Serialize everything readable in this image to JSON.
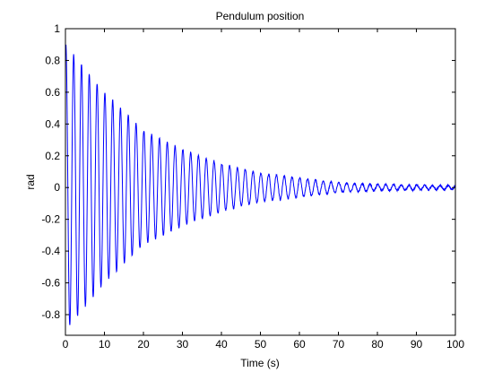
{
  "chart_data": {
    "type": "line",
    "title": "Pendulum position",
    "xlabel": "Time (s)",
    "ylabel": "rad",
    "xlim": [
      0,
      100
    ],
    "ylim": [
      -0.93,
      1.0
    ],
    "xticks": [
      0,
      10,
      20,
      30,
      40,
      50,
      60,
      70,
      80,
      90,
      100
    ],
    "xtick_labels": [
      "0",
      "10",
      "20",
      "30",
      "40",
      "50",
      "60",
      "70",
      "80",
      "90",
      "100"
    ],
    "yticks": [
      -0.8,
      -0.6,
      -0.4,
      -0.2,
      0,
      0.2,
      0.4,
      0.6,
      0.8,
      1
    ],
    "ytick_labels": [
      "-0.8",
      "-0.6",
      "-0.4",
      "-0.2",
      "0",
      "0.2",
      "0.4",
      "0.6",
      "0.8",
      "1"
    ],
    "grid": false,
    "legend": "none",
    "series": [
      {
        "color": "#0000ff",
        "description_values": {
          "initial_peak": 0.88,
          "initial_trough": -0.9,
          "period": 2.0,
          "amplitude_envelope": [
            [
              0,
              0.9
            ],
            [
              10,
              0.6
            ],
            [
              20,
              0.36
            ],
            [
              30,
              0.24
            ],
            [
              40,
              0.15
            ],
            [
              50,
              0.09
            ],
            [
              60,
              0.06
            ],
            [
              70,
              0.03
            ],
            [
              80,
              0.02
            ],
            [
              90,
              0.015
            ],
            [
              100,
              0.012
            ]
          ],
          "noise_level": 0.006
        }
      }
    ],
    "colors": {
      "line": "#0000ff",
      "axes": "#000000",
      "background": "#ffffff"
    }
  }
}
